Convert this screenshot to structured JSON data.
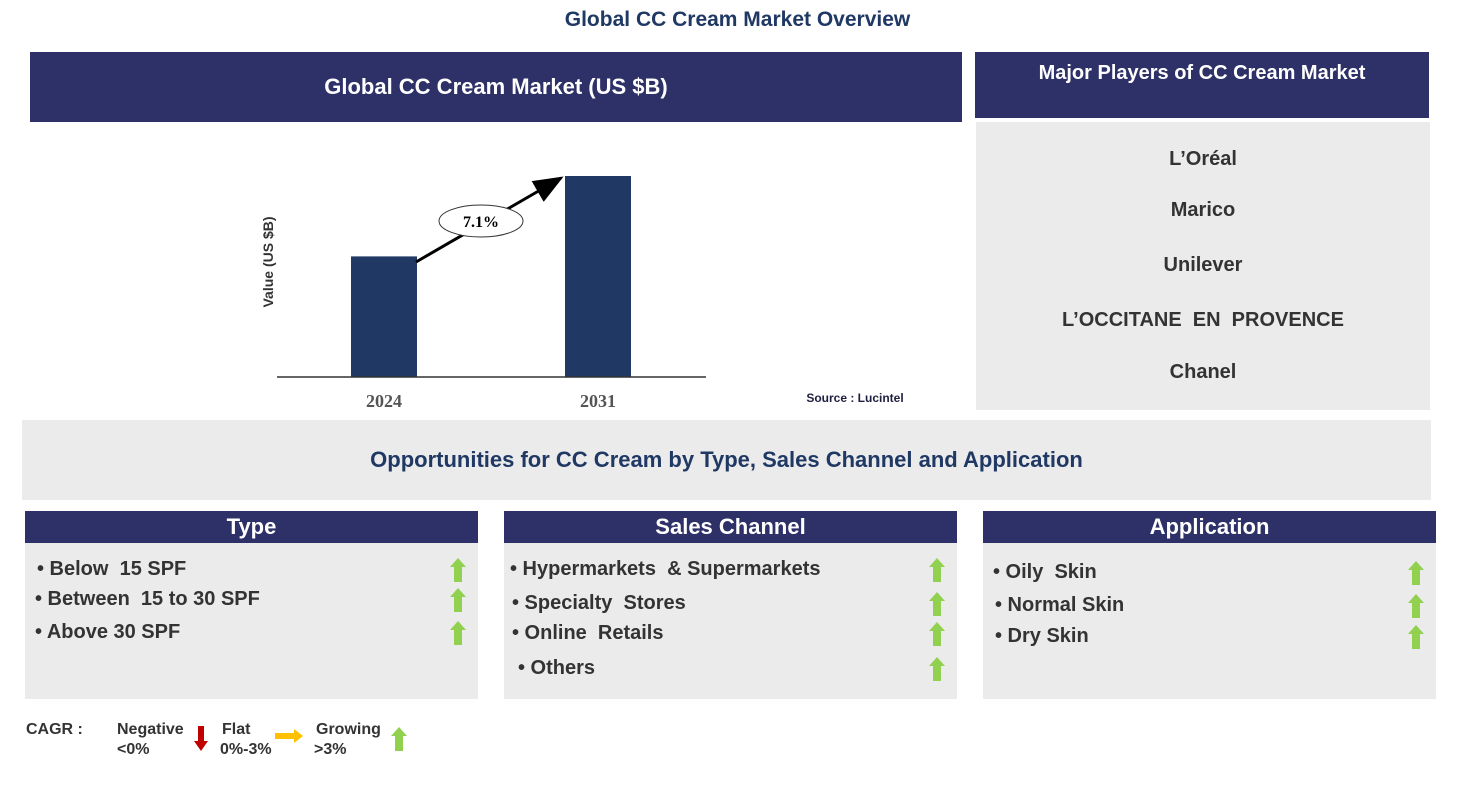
{
  "title": "Global CC Cream Market Overview",
  "chart_panel": {
    "header": "Global CC Cream Market (US $B)"
  },
  "chart_data": {
    "type": "bar",
    "categories": [
      "2024",
      "2031"
    ],
    "relative_values": [
      0.6,
      1.0
    ],
    "ylabel": "Value (US $B)",
    "annotation": "7.1%",
    "source": "Source : Lucintel",
    "grid": false,
    "bar_color": "#203864"
  },
  "players": {
    "header": "Major Players of CC Cream Market",
    "items": [
      "L’Oréal",
      "Marico",
      "Unilever",
      "L’OCCITANE  EN  PROVENCE",
      "Chanel"
    ]
  },
  "opportunities": {
    "title": "Opportunities for CC Cream by Type, Sales Channel and Application"
  },
  "segments": [
    {
      "header": "Type",
      "items": [
        "• Below  15 SPF",
        "• Between  15 to 30 SPF",
        "• Above 30 SPF"
      ]
    },
    {
      "header": "Sales Channel",
      "items": [
        "• Hypermarkets  & Supermarkets",
        "• Specialty  Stores",
        "• Online  Retails",
        "• Others"
      ]
    },
    {
      "header": "Application",
      "items": [
        "• Oily  Skin",
        "• Normal Skin",
        "• Dry Skin"
      ]
    }
  ],
  "legend": {
    "label": "CAGR  :",
    "negative": "Negative",
    "negative_range": "<0%",
    "flat": "Flat",
    "flat_range": "0%-3%",
    "growing": "Growing",
    "growing_range": ">3%",
    "colors": {
      "negative": "#c00000",
      "flat": "#ffc000",
      "growing": "#92d050"
    }
  }
}
